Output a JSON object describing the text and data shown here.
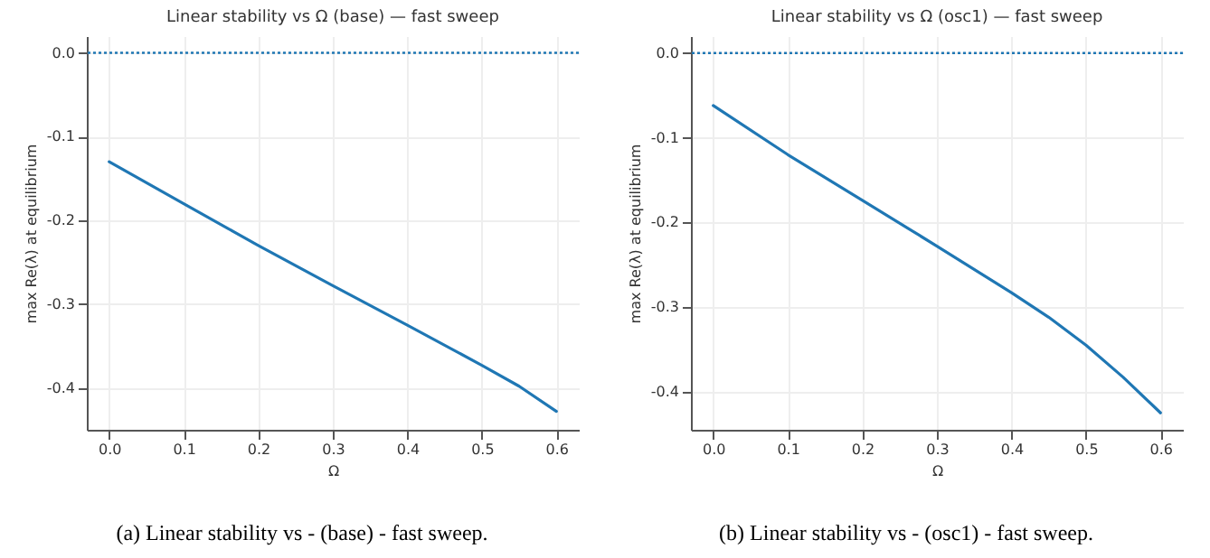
{
  "chart_data": [
    {
      "type": "line",
      "title": "Linear stability vs Ω (base) — fast sweep",
      "xlabel": "Ω",
      "ylabel": "max Re(λ) at equilibrium",
      "annotations": [
        "(a) Linear stability vs - (base) - fast sweep."
      ],
      "x": [
        0,
        0.1,
        0.2,
        0.3,
        0.4,
        0.5,
        0.55,
        0.6
      ],
      "series": [
        {
          "color": "#1f77b4",
          "values": [
            -0.13,
            -0.18,
            -0.23,
            -0.278,
            -0.325,
            -0.373,
            -0.398,
            -0.428
          ]
        }
      ],
      "xlim": [
        -0.03,
        0.63
      ],
      "xticks": [
        {
          "value": 0,
          "label": "0.0"
        },
        0.1,
        0.2,
        0.3,
        0.4,
        0.5,
        0.6
      ],
      "ylim": [
        -0.45,
        0.02
      ],
      "yticks": [
        -0.4,
        -0.3,
        -0.2,
        -0.1,
        {
          "value": 0,
          "label": "0.0"
        }
      ],
      "ref_lines": [
        {
          "axis": "y",
          "value": 0,
          "color": "#1f77b4",
          "line_style": "dotted"
        }
      ],
      "grid": true,
      "line_style": "solid"
    },
    {
      "type": "line",
      "title": "Linear stability vs Ω (osc1) — fast sweep",
      "xlabel": "Ω",
      "ylabel": "max Re(λ) at equilibrium",
      "annotations": [
        "(b) Linear stability vs - (osc1) - fast sweep."
      ],
      "x": [
        0,
        0.1,
        0.2,
        0.3,
        0.4,
        0.45,
        0.5,
        0.55,
        0.6
      ],
      "series": [
        {
          "color": "#1f77b4",
          "values": [
            -0.062,
            -0.12,
            -0.174,
            -0.228,
            -0.283,
            -0.312,
            -0.345,
            -0.383,
            -0.425
          ]
        }
      ],
      "xlim": [
        -0.03,
        0.63
      ],
      "xticks": [
        {
          "value": 0,
          "label": "0.0"
        },
        0.1,
        0.2,
        0.3,
        0.4,
        0.5,
        0.6
      ],
      "ylim": [
        -0.445,
        0.02
      ],
      "yticks": [
        -0.4,
        -0.3,
        -0.2,
        -0.1,
        {
          "value": 0,
          "label": "0.0"
        }
      ],
      "ref_lines": [
        {
          "axis": "y",
          "value": 0,
          "color": "#1f77b4",
          "line_style": "dotted"
        }
      ],
      "grid": true,
      "line_style": "solid"
    }
  ]
}
